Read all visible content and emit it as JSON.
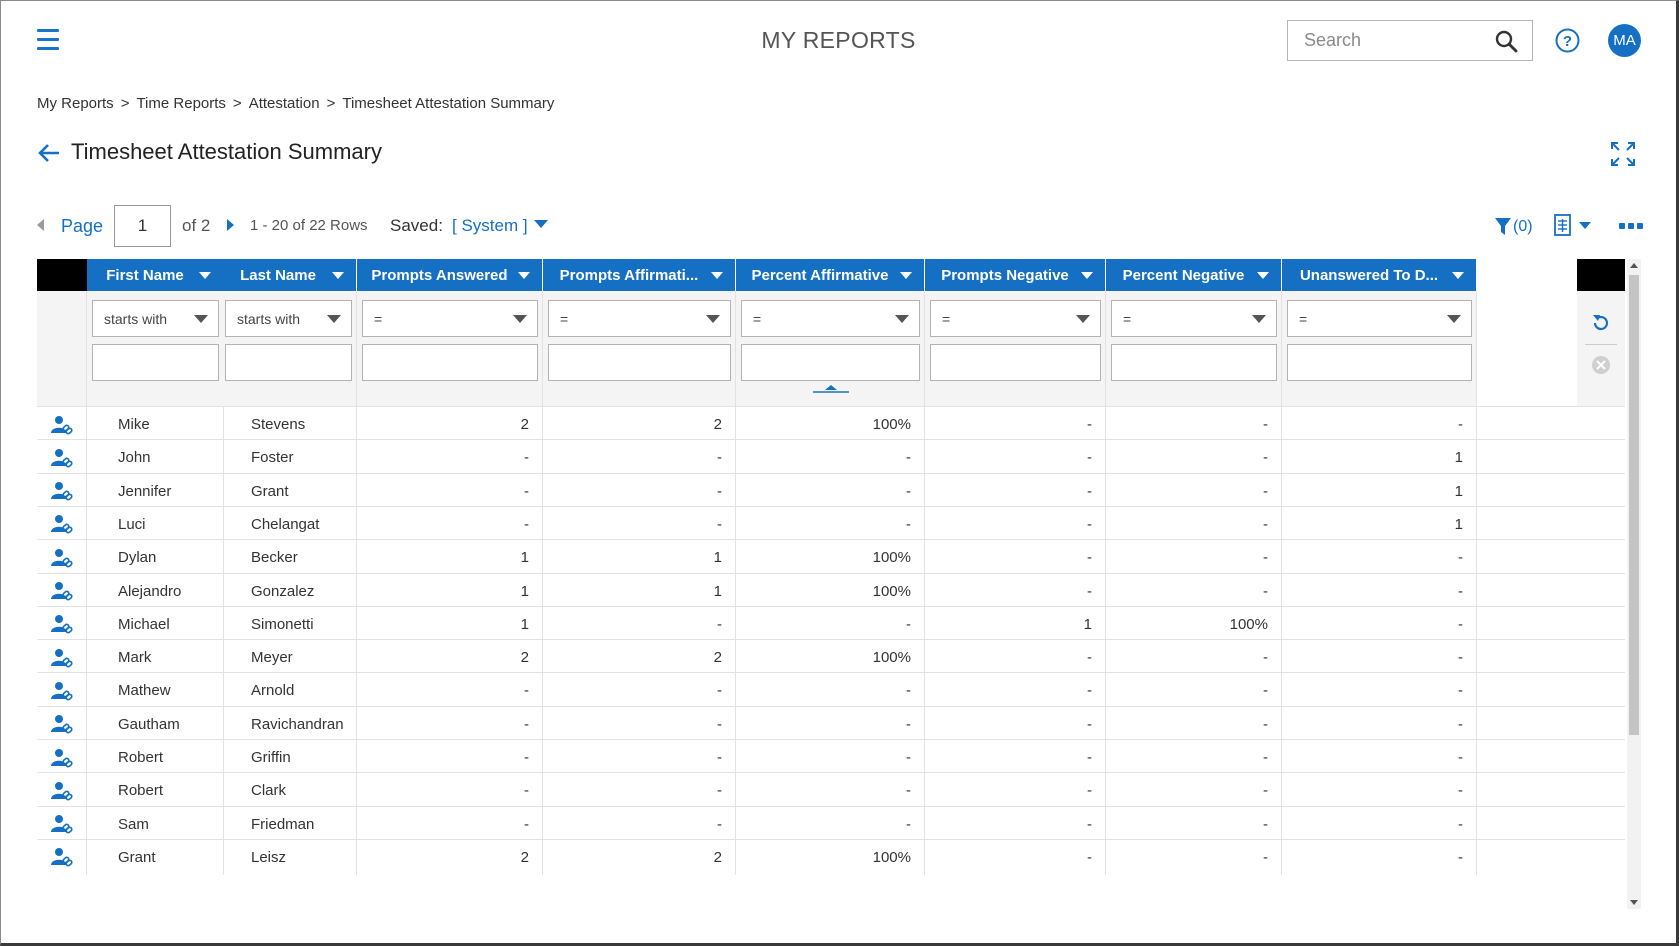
{
  "header": {
    "app_title": "MY REPORTS",
    "search_placeholder": "Search",
    "avatar_initials": "MA"
  },
  "breadcrumb": [
    "My Reports",
    "Time Reports",
    "Attestation",
    "Timesheet Attestation Summary"
  ],
  "page_title": "Timesheet Attestation Summary",
  "pager": {
    "page_label": "Page",
    "current_page": "1",
    "of_label": "of 2",
    "rows_label": "1 - 20 of 22 Rows",
    "saved_label": "Saved:",
    "saved_value": "[ System ]"
  },
  "toolbar": {
    "filter_count": "(0)"
  },
  "columns": [
    {
      "label": "First Name",
      "filter_op": "starts with",
      "align": "l"
    },
    {
      "label": "Last Name",
      "filter_op": "starts with",
      "align": "l"
    },
    {
      "label": "Prompts Answered",
      "filter_op": "=",
      "align": "r"
    },
    {
      "label": "Prompts Affirmati...",
      "filter_op": "=",
      "align": "r"
    },
    {
      "label": "Percent Affirmative",
      "filter_op": "=",
      "align": "r"
    },
    {
      "label": "Prompts Negative",
      "filter_op": "=",
      "align": "r"
    },
    {
      "label": "Percent Negative",
      "filter_op": "=",
      "align": "r"
    },
    {
      "label": "Unanswered To D...",
      "filter_op": "=",
      "align": "r"
    }
  ],
  "rows": [
    [
      "Mike",
      "Stevens",
      "2",
      "2",
      "100%",
      "-",
      "-",
      "-"
    ],
    [
      "John",
      "Foster",
      "-",
      "-",
      "-",
      "-",
      "-",
      "1"
    ],
    [
      "Jennifer",
      "Grant",
      "-",
      "-",
      "-",
      "-",
      "-",
      "1"
    ],
    [
      "Luci",
      "Chelangat",
      "-",
      "-",
      "-",
      "-",
      "-",
      "1"
    ],
    [
      "Dylan",
      "Becker",
      "1",
      "1",
      "100%",
      "-",
      "-",
      "-"
    ],
    [
      "Alejandro",
      "Gonzalez",
      "1",
      "1",
      "100%",
      "-",
      "-",
      "-"
    ],
    [
      "Michael",
      "Simonetti",
      "1",
      "-",
      "-",
      "1",
      "100%",
      "-"
    ],
    [
      "Mark",
      "Meyer",
      "2",
      "2",
      "100%",
      "-",
      "-",
      "-"
    ],
    [
      "Mathew",
      "Arnold",
      "-",
      "-",
      "-",
      "-",
      "-",
      "-"
    ],
    [
      "Gautham",
      "Ravichandran",
      "-",
      "-",
      "-",
      "-",
      "-",
      "-"
    ],
    [
      "Robert",
      "Griffin",
      "-",
      "-",
      "-",
      "-",
      "-",
      "-"
    ],
    [
      "Robert",
      "Clark",
      "-",
      "-",
      "-",
      "-",
      "-",
      "-"
    ],
    [
      "Sam",
      "Friedman",
      "-",
      "-",
      "-",
      "-",
      "-",
      "-"
    ],
    [
      "Grant",
      "Leisz",
      "2",
      "2",
      "100%",
      "-",
      "-",
      "-"
    ]
  ],
  "colors": {
    "accent": "#1570c4",
    "header_black": "#000000"
  }
}
